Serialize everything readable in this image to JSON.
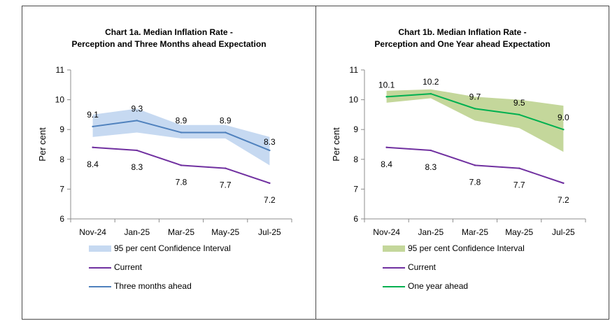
{
  "chart_data": [
    {
      "type": "line",
      "title_line1": "Chart 1a. Median Inflation Rate -",
      "title_line2": "Perception and Three Months ahead Expectation",
      "title": "Chart 1a. Median Inflation Rate - Perception and Three Months ahead Expectation",
      "xlabel": "",
      "ylabel": "Per cent",
      "ylim": [
        6,
        11
      ],
      "yticks": [
        "6",
        "7",
        "8",
        "9",
        "10",
        "11"
      ],
      "categories": [
        "Nov-24",
        "Jan-25",
        "Mar-25",
        "May-25",
        "Jul-25"
      ],
      "band": {
        "name": "95 per cent Confidence Interval",
        "lower": [
          8.75,
          8.9,
          8.7,
          8.7,
          7.8
        ],
        "upper": [
          9.5,
          9.7,
          9.15,
          9.15,
          8.75
        ],
        "color": "#c6d9f1"
      },
      "series": [
        {
          "name": "Current",
          "values": [
            8.4,
            8.3,
            7.8,
            7.7,
            7.2
          ],
          "labels": [
            "8.4",
            "8.3",
            "7.8",
            "7.7",
            "7.2"
          ],
          "color": "#7030a0"
        },
        {
          "name": "Three months ahead",
          "values": [
            9.1,
            9.3,
            8.9,
            8.9,
            8.3
          ],
          "labels": [
            "9.1",
            "9.3",
            "8.9",
            "8.9",
            "8.3"
          ],
          "color": "#4f81bd"
        }
      ],
      "legend": [
        {
          "kind": "band",
          "label": "95 per cent Confidence Interval",
          "color": "#c6d9f1"
        },
        {
          "kind": "line",
          "label": "Current",
          "color": "#7030a0"
        },
        {
          "kind": "line",
          "label": "Three months ahead",
          "color": "#4f81bd"
        }
      ],
      "legend_position": "bottom"
    },
    {
      "type": "line",
      "title_line1": "Chart 1b. Median Inflation Rate -",
      "title_line2": "Perception and One Year ahead Expectation",
      "title": "Chart 1b. Median Inflation Rate - Perception and One Year ahead Expectation",
      "xlabel": "",
      "ylabel": "Per cent",
      "ylim": [
        6,
        11
      ],
      "yticks": [
        "6",
        "7",
        "8",
        "9",
        "10",
        "11"
      ],
      "categories": [
        "Nov-24",
        "Jan-25",
        "Mar-25",
        "May-25",
        "Jul-25"
      ],
      "band": {
        "name": "95 per cent Confidence Interval",
        "lower": [
          9.9,
          10.05,
          9.3,
          9.05,
          8.25
        ],
        "upper": [
          10.3,
          10.35,
          10.1,
          10.0,
          9.8
        ],
        "color": "#c4d79b"
      },
      "series": [
        {
          "name": "Current",
          "values": [
            8.4,
            8.3,
            7.8,
            7.7,
            7.2
          ],
          "labels": [
            "8.4",
            "8.3",
            "7.8",
            "7.7",
            "7.2"
          ],
          "color": "#7030a0"
        },
        {
          "name": "One year ahead",
          "values": [
            10.1,
            10.2,
            9.7,
            9.5,
            9.0
          ],
          "labels": [
            "10.1",
            "10.2",
            "9.7",
            "9.5",
            "9.0"
          ],
          "color": "#00b050"
        }
      ],
      "legend": [
        {
          "kind": "band",
          "label": "95 per cent Confidence Interval",
          "color": "#c4d79b"
        },
        {
          "kind": "line",
          "label": "Current",
          "color": "#7030a0"
        },
        {
          "kind": "line",
          "label": "One year ahead",
          "color": "#00b050"
        }
      ],
      "legend_position": "bottom"
    }
  ]
}
